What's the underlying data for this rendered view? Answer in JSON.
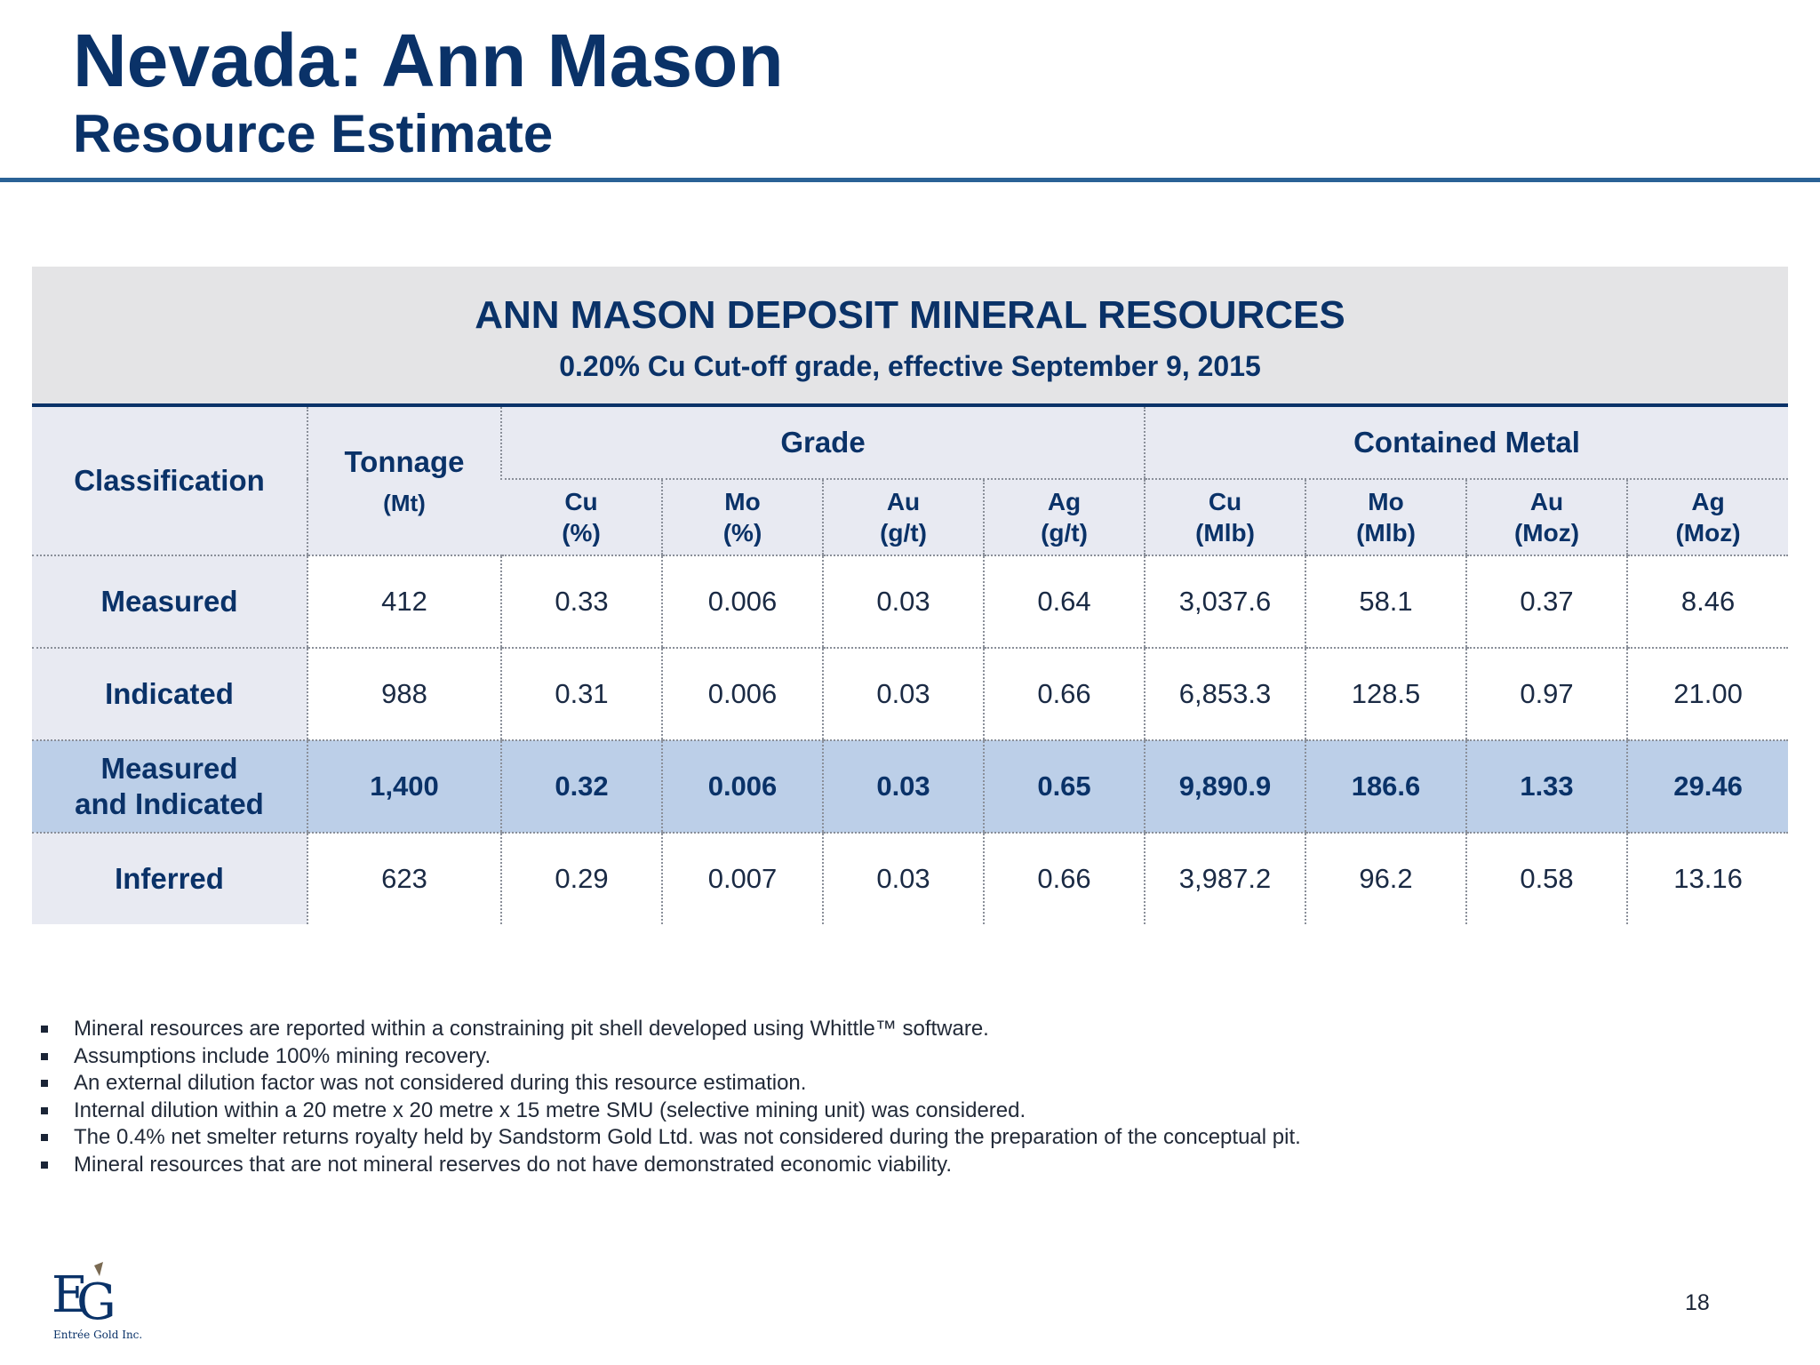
{
  "header": {
    "title": "Nevada: Ann Mason",
    "subtitle": "Resource Estimate"
  },
  "table": {
    "title": "ANN MASON DEPOSIT MINERAL RESOURCES",
    "subtitle": "0.20% Cu Cut-off grade, effective September 9, 2015",
    "headers": {
      "classification": "Classification",
      "tonnage": "Tonnage",
      "tonnage_unit": "(Mt)",
      "grade": "Grade",
      "contained_metal": "Contained Metal",
      "grade_cols": [
        {
          "el": "Cu",
          "unit": "(%)"
        },
        {
          "el": "Mo",
          "unit": "(%)"
        },
        {
          "el": "Au",
          "unit": "(g/t)"
        },
        {
          "el": "Ag",
          "unit": "(g/t)"
        }
      ],
      "metal_cols": [
        {
          "el": "Cu",
          "unit": "(Mlb)"
        },
        {
          "el": "Mo",
          "unit": "(Mlb)"
        },
        {
          "el": "Au",
          "unit": "(Moz)"
        },
        {
          "el": "Ag",
          "unit": "(Moz)"
        }
      ]
    },
    "rows": [
      {
        "label": "Measured",
        "label2": "",
        "values": [
          "412",
          "0.33",
          "0.006",
          "0.03",
          "0.64",
          "3,037.6",
          "58.1",
          "0.37",
          "8.46"
        ]
      },
      {
        "label": "Indicated",
        "label2": "",
        "values": [
          "988",
          "0.31",
          "0.006",
          "0.03",
          "0.66",
          "6,853.3",
          "128.5",
          "0.97",
          "21.00"
        ]
      },
      {
        "label": "Measured",
        "label2": "and Indicated",
        "values": [
          "1,400",
          "0.32",
          "0.006",
          "0.03",
          "0.65",
          "9,890.9",
          "186.6",
          "1.33",
          "29.46"
        ]
      },
      {
        "label": "Inferred",
        "label2": "",
        "values": [
          "623",
          "0.29",
          "0.007",
          "0.03",
          "0.66",
          "3,987.2",
          "96.2",
          "0.58",
          "13.16"
        ]
      }
    ]
  },
  "notes": [
    "Mineral resources are reported within a constraining pit shell developed using Whittle™ software.",
    "Assumptions include 100% mining recovery.",
    "An external dilution factor was not considered during this resource estimation.",
    "Internal dilution within a 20 metre x 20 metre x 15 metre SMU (selective mining unit) was considered.",
    "The 0.4% net smelter returns royalty held by Sandstorm Gold Ltd. was not considered during the preparation of the conceptual pit.",
    "Mineral resources that are not mineral reserves do not have demonstrated economic viability."
  ],
  "footer": {
    "logo_mark": "EG",
    "logo_text": "Entrée Gold Inc.",
    "page_number": "18"
  }
}
